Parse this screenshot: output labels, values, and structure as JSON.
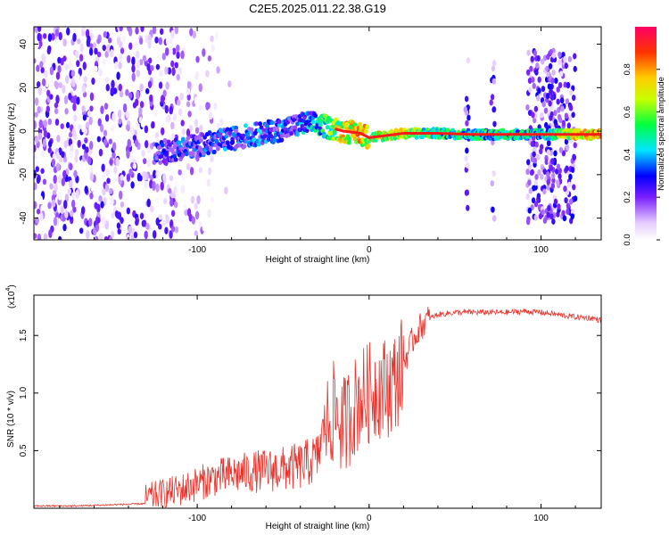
{
  "figure_title": "C2E5.2025.011.22.38.G19",
  "chart_data": [
    {
      "type": "heatmap",
      "title": "C2E5.2025.011.22.38.G19",
      "xlabel": "Height of straight line (km)",
      "ylabel": "Frequency (Hz)",
      "xlim": [
        -195,
        135
      ],
      "ylim": [
        -50,
        48
      ],
      "x_ticks": [
        -100,
        0,
        100
      ],
      "y_ticks": [
        -40,
        -20,
        0,
        20,
        40
      ],
      "colorbar": {
        "label": "Normalized spectral amplitude",
        "range": [
          0,
          1
        ],
        "ticks": [
          0.0,
          0.2,
          0.4,
          0.6,
          0.8
        ],
        "tick_labels": [
          "0.0",
          "0.2",
          "0.4",
          "0.6",
          "0.8"
        ]
      },
      "colormap_stops": [
        "#ffffff",
        "#e6ccff",
        "#7a1fff",
        "#0000ff",
        "#00e5ff",
        "#00ff40",
        "#c8ff00",
        "#ffcc00",
        "#ff3300",
        "#ff0066"
      ],
      "ridge": {
        "x": [
          -125,
          -110,
          -90,
          -70,
          -55,
          -45,
          -35,
          -25,
          -15,
          -5,
          0,
          10,
          20,
          40,
          60,
          80,
          100,
          120,
          135
        ],
        "frequency": [
          -10,
          -8,
          -5,
          -2,
          0,
          2,
          4,
          2,
          0,
          -1,
          -3,
          -2,
          -1,
          -1,
          -1.5,
          -1.5,
          -1.5,
          -1.5,
          -1.5
        ],
        "amplitude": [
          0.35,
          0.4,
          0.4,
          0.45,
          0.45,
          0.4,
          0.5,
          0.65,
          0.85,
          0.9,
          0.8,
          0.85,
          0.8,
          0.65,
          0.6,
          0.6,
          0.6,
          0.85,
          0.95
        ]
      },
      "noise_region_x": [
        -195,
        -125
      ],
      "bursts_x": [
        57,
        72,
        100,
        112
      ]
    },
    {
      "type": "line",
      "xlabel": "Height of straight line (km)",
      "ylabel": "SNR (10 * v/v)",
      "y_multiplier": "(x10",
      "y_multiplier_exp": "4",
      "xlim": [
        -195,
        135
      ],
      "ylim": [
        0,
        1.85
      ],
      "x_ticks": [
        -100,
        0,
        100
      ],
      "y_ticks": [
        0.5,
        1.0,
        1.5
      ],
      "y_tick_labels": [
        "0.5",
        "1.0",
        "1.5"
      ],
      "color": "#e8322b",
      "series": [
        {
          "x": [
            -195,
            -170,
            -150,
            -130,
            -120,
            -110,
            -100,
            -90,
            -80,
            -70,
            -60,
            -50,
            -40,
            -30,
            -25,
            -20,
            -15,
            -10,
            -5,
            0,
            5,
            10,
            15,
            20,
            25,
            30,
            35,
            40,
            50,
            60,
            70,
            80,
            90,
            100,
            110,
            120,
            130,
            135
          ],
          "values": [
            0.02,
            0.02,
            0.03,
            0.04,
            0.07,
            0.1,
            0.15,
            0.2,
            0.22,
            0.24,
            0.25,
            0.26,
            0.28,
            0.35,
            0.7,
            0.85,
            0.7,
            0.85,
            0.95,
            1.0,
            1.05,
            1.05,
            1.1,
            1.25,
            1.45,
            1.58,
            1.65,
            1.68,
            1.7,
            1.7,
            1.7,
            1.7,
            1.71,
            1.7,
            1.68,
            1.66,
            1.65,
            1.63
          ]
        }
      ]
    }
  ]
}
